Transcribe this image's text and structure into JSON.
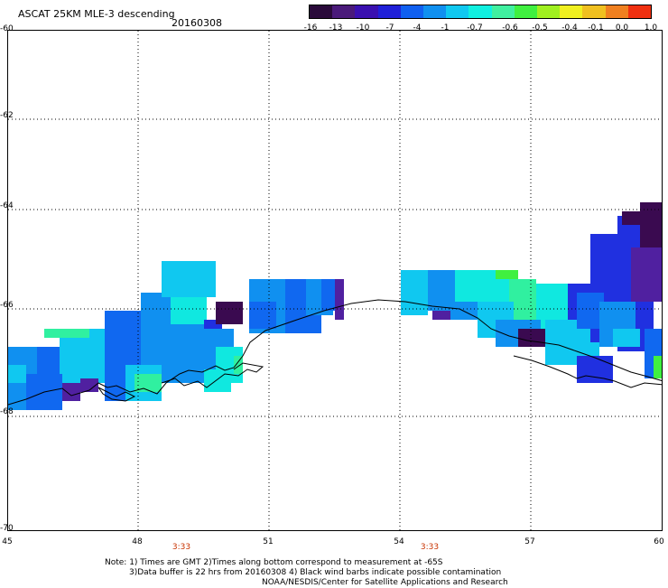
{
  "header": {
    "title": "ASCAT 25KM MLE-3 descending",
    "date": "20160308"
  },
  "colorbar": {
    "labels": [
      "-16",
      "-13",
      "-10",
      "-7",
      "-4",
      "-1",
      "-0.7",
      "-0.6",
      "-0.5",
      "-0.4",
      "-0.1",
      "0.0",
      "1.0"
    ],
    "colors": [
      "#2a0a3a",
      "#4a1a7a",
      "#3a10b0",
      "#2020d8",
      "#1060f0",
      "#1090f0",
      "#10c8f0",
      "#10f0e0",
      "#40f0a0",
      "#40f040",
      "#a0f020",
      "#f0f020",
      "#f0c020",
      "#f08020",
      "#f03010"
    ]
  },
  "axes": {
    "y_ticks": [
      "-60",
      "-62",
      "-64",
      "-66",
      "-68",
      "-70"
    ],
    "x_ticks": [
      "45",
      "48",
      "51",
      "54",
      "57",
      "60"
    ],
    "pass_times": [
      "3:33",
      "3:33"
    ]
  },
  "notes": {
    "line1": "Note: 1) Times are GMT 2)Times along bottom correspond to measurement at -65S",
    "line2": "3)Data buffer is 22 hrs from 20160308 4) Black wind barbs indicate possible contamination",
    "line3": "NOAA/NESDIS/Center for Satellite Applications and Research"
  }
}
